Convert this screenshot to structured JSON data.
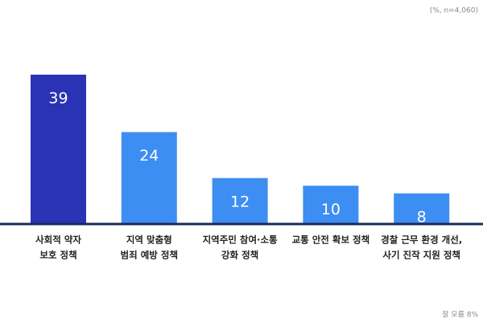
{
  "chart_data": {
    "type": "bar",
    "note": "(%, n=4,060)",
    "footnote": "잘 모름 8%",
    "categories": [
      [
        "사회적 약자",
        "보호 정책"
      ],
      [
        "지역 맞춤형",
        "범죄 예방 정책"
      ],
      [
        "지역주민 참여·소통",
        "강화 정책"
      ],
      [
        "교통 안전 확보 정책"
      ],
      [
        "경찰 근무 환경 개선,",
        "사기 진작 지원 정책"
      ]
    ],
    "values": [
      39,
      24,
      12,
      10,
      8
    ],
    "colors": [
      "#2b33b5",
      "#3d8ef2",
      "#3d8ef2",
      "#3d8ef2",
      "#3d8ef2"
    ]
  }
}
